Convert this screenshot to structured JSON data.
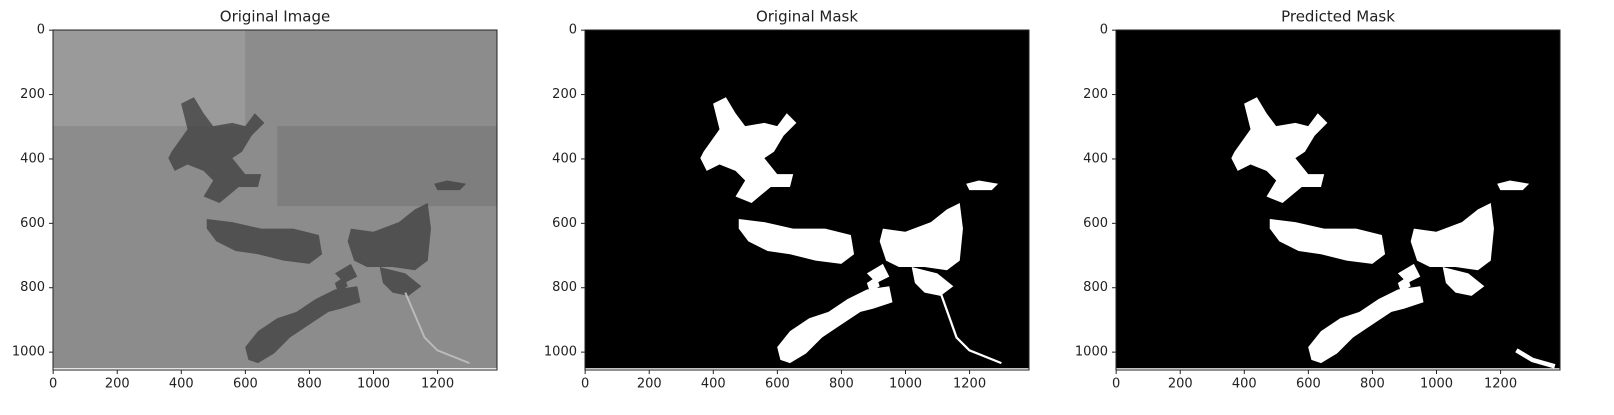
{
  "chart_data": [
    {
      "type": "image",
      "title": "Original Image",
      "xlim": [
        -0.5,
        1385.5
      ],
      "ylim": [
        1055.5,
        -0.5
      ],
      "xticks": [
        0,
        200,
        400,
        600,
        800,
        1000,
        1200
      ],
      "yticks": [
        0,
        200,
        400,
        600,
        800,
        1000
      ]
    },
    {
      "type": "image",
      "title": "Original Mask",
      "xlim": [
        -0.5,
        1385.5
      ],
      "ylim": [
        1055.5,
        -0.5
      ],
      "xticks": [
        0,
        200,
        400,
        600,
        800,
        1000,
        1200
      ],
      "yticks": [
        0,
        200,
        400,
        600,
        800,
        1000
      ]
    },
    {
      "type": "image",
      "title": "Predicted Mask",
      "xlim": [
        -0.5,
        1385.5
      ],
      "ylim": [
        1055.5,
        -0.5
      ],
      "xticks": [
        0,
        200,
        400,
        600,
        800,
        1000,
        1200
      ],
      "yticks": [
        0,
        200,
        400,
        600,
        800,
        1000
      ]
    }
  ]
}
